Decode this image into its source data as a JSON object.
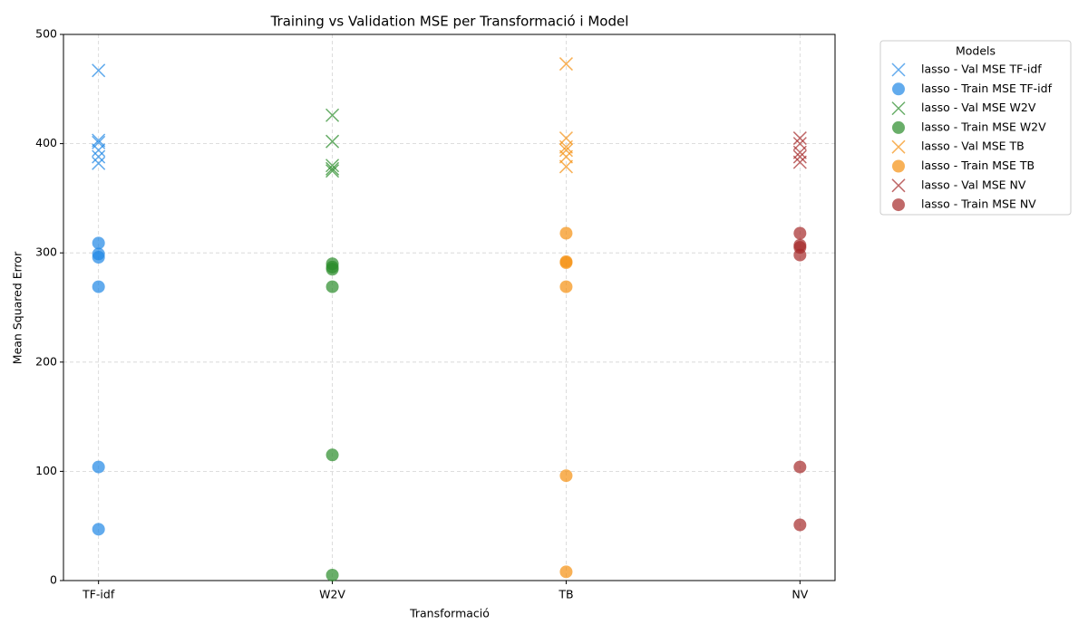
{
  "chart_data": {
    "type": "scatter",
    "title": "Training vs Validation MSE per Transformació i Model",
    "x_label": "Transformació",
    "y_label": "Mean Squared Error",
    "categories": [
      "TF-idf",
      "W2V",
      "TB",
      "NV"
    ],
    "ylim": [
      0,
      500
    ],
    "yticks": [
      0,
      100,
      200,
      300,
      400,
      500
    ],
    "grid": true,
    "legend_title": "Models",
    "legend_position": "outside right",
    "series": [
      {
        "name": "lasso - Val MSE TF-idf",
        "color": "#1f88e5",
        "marker": "x",
        "x": [
          "TF-idf",
          "TF-idf",
          "TF-idf",
          "TF-idf",
          "TF-idf",
          "TF-idf"
        ],
        "values": [
          467,
          403,
          401,
          394,
          388,
          382
        ]
      },
      {
        "name": "lasso - Train MSE TF-idf",
        "color": "#1f88e5",
        "marker": "o",
        "x": [
          "TF-idf",
          "TF-idf",
          "TF-idf",
          "TF-idf",
          "TF-idf",
          "TF-idf"
        ],
        "values": [
          309,
          299,
          296,
          269,
          104,
          47
        ]
      },
      {
        "name": "lasso - Val MSE W2V",
        "color": "#2a8c2a",
        "marker": "x",
        "x": [
          "W2V",
          "W2V",
          "W2V",
          "W2V",
          "W2V"
        ],
        "values": [
          426,
          402,
          380,
          377,
          375
        ]
      },
      {
        "name": "lasso - Train MSE W2V",
        "color": "#2a8c2a",
        "marker": "o",
        "x": [
          "W2V",
          "W2V",
          "W2V",
          "W2V",
          "W2V",
          "W2V"
        ],
        "values": [
          290,
          287,
          285,
          269,
          115,
          5
        ]
      },
      {
        "name": "lasso - Val MSE TB",
        "color": "#f5900f",
        "marker": "x",
        "x": [
          "TB",
          "TB",
          "TB",
          "TB",
          "TB",
          "TB"
        ],
        "values": [
          473,
          405,
          397,
          394,
          388,
          379
        ]
      },
      {
        "name": "lasso - Train MSE TB",
        "color": "#f5900f",
        "marker": "o",
        "x": [
          "TB",
          "TB",
          "TB",
          "TB",
          "TB",
          "TB"
        ],
        "values": [
          318,
          292,
          291,
          269,
          96,
          8
        ]
      },
      {
        "name": "lasso - Val MSE NV",
        "color": "#a52a2a",
        "marker": "x",
        "x": [
          "NV",
          "NV",
          "NV",
          "NV",
          "NV"
        ],
        "values": [
          405,
          400,
          392,
          388,
          383
        ]
      },
      {
        "name": "lasso - Train MSE NV",
        "color": "#a52a2a",
        "marker": "o",
        "x": [
          "NV",
          "NV",
          "NV",
          "NV",
          "NV",
          "NV"
        ],
        "values": [
          318,
          307,
          305,
          298,
          104,
          51
        ]
      }
    ]
  }
}
